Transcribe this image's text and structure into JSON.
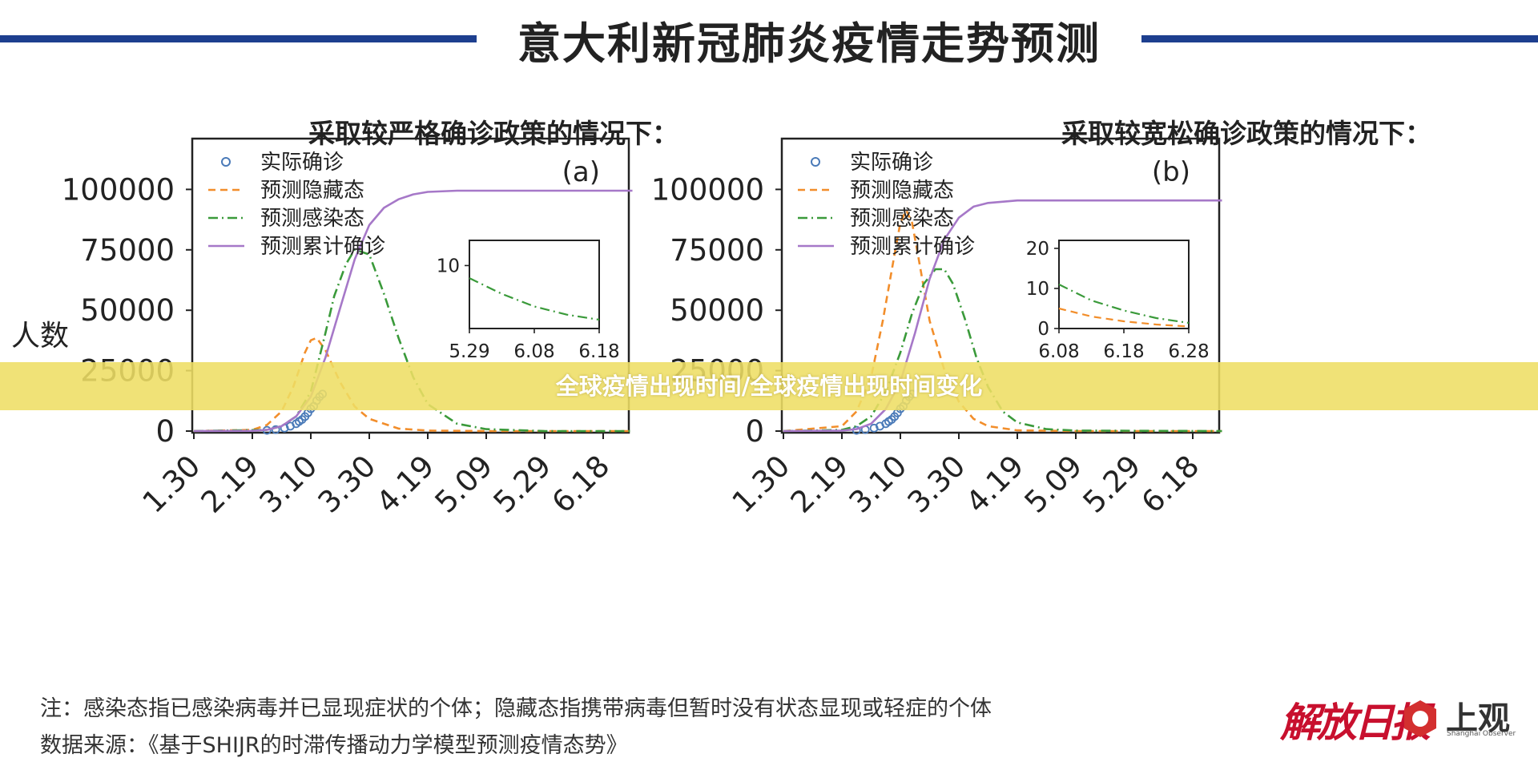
{
  "page": {
    "title": "意大利新冠肺炎疫情走势预测",
    "y_axis_label": "人数",
    "overlay_banner": "全球疫情出现时间/全球疫情出现时间变化",
    "note": "注：感染态指已感染病毒并已显现症状的个体；隐藏态指携带病毒但暂时没有状态显现或轻症的个体",
    "source": "数据来源：《基于SHIJR的时滞传播动力学模型预测疫情态势》",
    "logo_left": "解放日报",
    "logo_right": "上观",
    "logo_right_sub": "Shanghai Observer"
  },
  "colors": {
    "title_rule": "#1d3f8f",
    "observed": "#4a7ab8",
    "latent": "#f28e2b",
    "infected": "#3a9a3a",
    "cumulative": "#a678c8",
    "banner": "#eede64"
  },
  "chart_data": [
    {
      "type": "line",
      "panel_title": "采取较严格确诊政策的情况下：",
      "panel_label": "(a)",
      "x_ticks": [
        "1.30",
        "2.19",
        "3.10",
        "3.30",
        "4.19",
        "5.09",
        "5.29",
        "6.18"
      ],
      "y_ticks": [
        "0",
        "25000",
        "50000",
        "75000",
        "100000"
      ],
      "ylim": [
        0,
        105000
      ],
      "xlim": [
        0,
        150
      ],
      "x_unit": "days since 1.30",
      "legend": [
        "实际确诊",
        "预测隐藏态",
        "预测感染态",
        "预测累计确诊"
      ],
      "legend_placement": "top-left",
      "series": [
        {
          "name": "实际确诊",
          "style": "markers",
          "x": [
            25,
            28,
            31,
            33,
            35,
            36,
            37,
            38,
            39,
            40,
            41,
            42,
            43,
            44
          ],
          "y": [
            300,
            600,
            1200,
            2000,
            3000,
            3900,
            4700,
            5900,
            7400,
            9100,
            10100,
            12400,
            14000,
            15100
          ]
        },
        {
          "name": "预测隐藏态",
          "style": "dashed",
          "x": [
            0,
            20,
            25,
            30,
            34,
            38,
            40,
            42,
            45,
            50,
            55,
            60,
            70,
            80,
            100,
            150
          ],
          "y": [
            0,
            500,
            2500,
            8000,
            18000,
            32000,
            37000,
            38000,
            33000,
            20000,
            10000,
            5000,
            1000,
            200,
            0,
            0
          ]
        },
        {
          "name": "预测感染态",
          "style": "dashdot",
          "x": [
            0,
            25,
            30,
            35,
            40,
            45,
            48,
            52,
            55,
            60,
            65,
            70,
            75,
            80,
            90,
            100,
            120,
            150
          ],
          "y": [
            0,
            500,
            2000,
            6000,
            16000,
            40000,
            55000,
            68000,
            74000,
            72000,
            56000,
            38000,
            22000,
            11000,
            3000,
            800,
            0,
            0
          ]
        },
        {
          "name": "预测累计确诊",
          "style": "solid",
          "x": [
            0,
            20,
            25,
            30,
            35,
            40,
            45,
            50,
            55,
            60,
            65,
            70,
            75,
            80,
            90,
            100,
            120,
            150
          ],
          "y": [
            0,
            100,
            500,
            2000,
            6000,
            14000,
            30000,
            50000,
            70000,
            84000,
            91000,
            94500,
            96500,
            97500,
            98000,
            98000,
            98000,
            98000
          ]
        }
      ],
      "inset": {
        "x_ticks": [
          "5.29",
          "6.08",
          "6.18"
        ],
        "y_ticks": [
          "10"
        ],
        "ylim": [
          0,
          14
        ],
        "series_infected": [
          [
            0,
            8
          ],
          [
            0.25,
            5.5
          ],
          [
            0.5,
            3.5
          ],
          [
            0.75,
            2.2
          ],
          [
            1,
            1.4
          ]
        ]
      }
    },
    {
      "type": "line",
      "panel_title": "采取较宽松确诊政策的情况下：",
      "panel_label": "(b)",
      "x_ticks": [
        "1.30",
        "2.19",
        "3.10",
        "3.30",
        "4.19",
        "5.09",
        "5.29",
        "6.18"
      ],
      "y_ticks": [
        "0",
        "25000",
        "50000",
        "75000",
        "100000"
      ],
      "ylim": [
        0,
        105000
      ],
      "xlim": [
        0,
        150
      ],
      "x_unit": "days since 1.30",
      "legend": [
        "实际确诊",
        "预测隐藏态",
        "预测感染态",
        "预测累计确诊"
      ],
      "legend_placement": "top-left",
      "series": [
        {
          "name": "实际确诊",
          "style": "markers",
          "x": [
            25,
            28,
            31,
            33,
            35,
            36,
            37,
            38,
            39,
            40,
            41,
            42,
            43,
            44
          ],
          "y": [
            300,
            600,
            1200,
            2000,
            3000,
            3900,
            4700,
            5900,
            7400,
            9100,
            10100,
            12400,
            14000,
            15100
          ]
        },
        {
          "name": "预测隐藏态",
          "style": "dashed",
          "x": [
            0,
            20,
            25,
            30,
            34,
            38,
            40,
            42,
            44,
            46,
            50,
            55,
            60,
            65,
            70,
            80,
            100,
            150
          ],
          "y": [
            0,
            2000,
            8000,
            22000,
            45000,
            72000,
            85000,
            90000,
            85000,
            72000,
            45000,
            25000,
            12000,
            5000,
            2000,
            300,
            0,
            0
          ]
        },
        {
          "name": "预测感染态",
          "style": "dashdot",
          "x": [
            0,
            20,
            25,
            30,
            35,
            40,
            44,
            48,
            52,
            55,
            58,
            62,
            66,
            70,
            75,
            80,
            90,
            100,
            150
          ],
          "y": [
            0,
            500,
            2000,
            6000,
            16000,
            32000,
            48000,
            60000,
            66000,
            66000,
            60000,
            46000,
            30000,
            18000,
            8000,
            3500,
            800,
            200,
            0
          ]
        },
        {
          "name": "预测累计确诊",
          "style": "solid",
          "x": [
            0,
            20,
            25,
            30,
            35,
            40,
            45,
            50,
            55,
            60,
            65,
            70,
            80,
            90,
            100,
            120,
            150
          ],
          "y": [
            0,
            200,
            800,
            3000,
            9000,
            20000,
            40000,
            62000,
            78000,
            87000,
            91500,
            93000,
            94000,
            94000,
            94000,
            94000,
            94000
          ]
        }
      ],
      "inset": {
        "x_ticks": [
          "6.08",
          "6.18",
          "6.28"
        ],
        "y_ticks": [
          "0",
          "10",
          "20"
        ],
        "ylim": [
          0,
          22
        ],
        "series_infected": [
          [
            0,
            11
          ],
          [
            0.25,
            7
          ],
          [
            0.5,
            4.5
          ],
          [
            0.75,
            2.6
          ],
          [
            1,
            1.4
          ]
        ],
        "series_latent": [
          [
            0,
            5
          ],
          [
            0.25,
            3
          ],
          [
            0.5,
            1.8
          ],
          [
            0.75,
            1
          ],
          [
            1,
            0.5
          ]
        ]
      }
    }
  ]
}
